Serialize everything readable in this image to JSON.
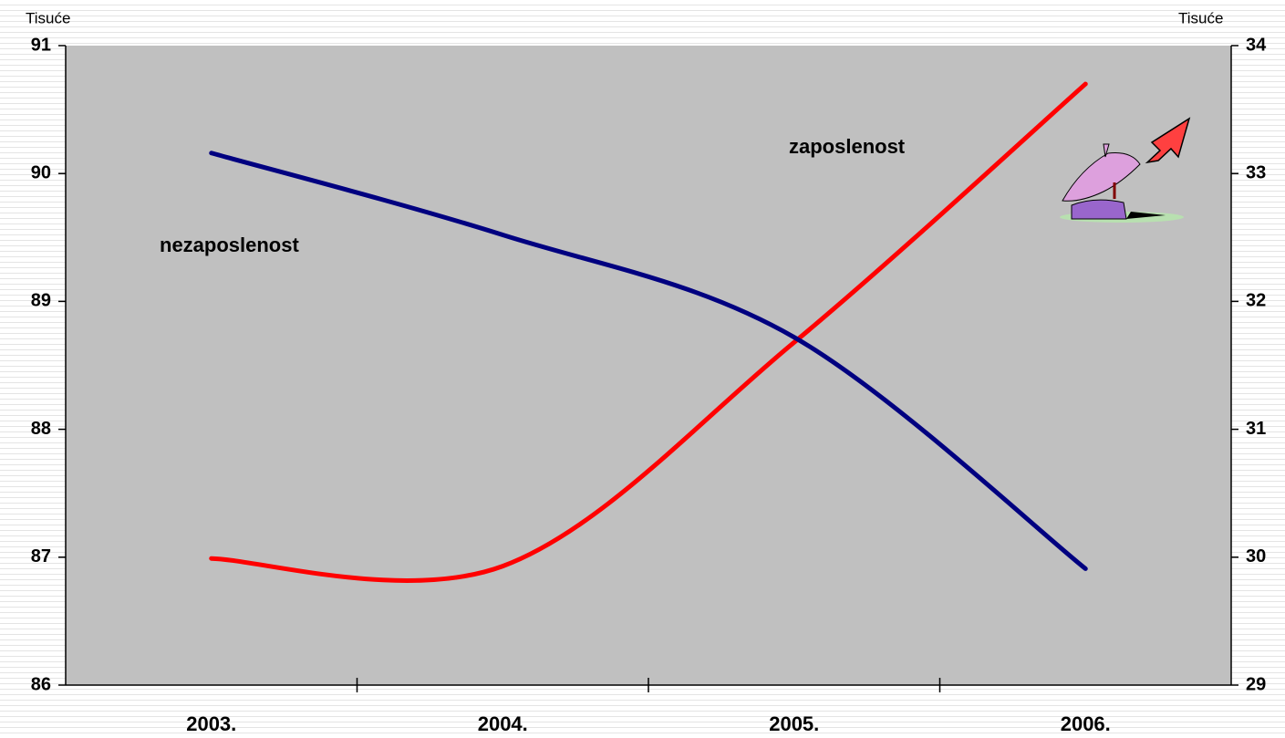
{
  "chart_data": {
    "type": "line",
    "categories": [
      "2003.",
      "2004.",
      "2005.",
      "2006."
    ],
    "series": [
      {
        "name": "zaposlenost",
        "color": "#ff0000",
        "values": [
          86.99,
          86.93,
          88.68,
          90.7
        ]
      },
      {
        "name": "nezaposlenost",
        "color": "#000080",
        "axis": "y2",
        "values": [
          33.16,
          32.52,
          31.72,
          29.91
        ]
      }
    ],
    "ylabel": "Tisuće",
    "y2label": "Tisuće",
    "ylim": [
      86,
      91
    ],
    "yticks": [
      86,
      87,
      88,
      89,
      90,
      91
    ],
    "y2lim": [
      29,
      34
    ],
    "y2ticks": [
      29,
      30,
      31,
      32,
      33,
      34
    ],
    "plot_background": "#c0c0c0",
    "smooth": true
  }
}
